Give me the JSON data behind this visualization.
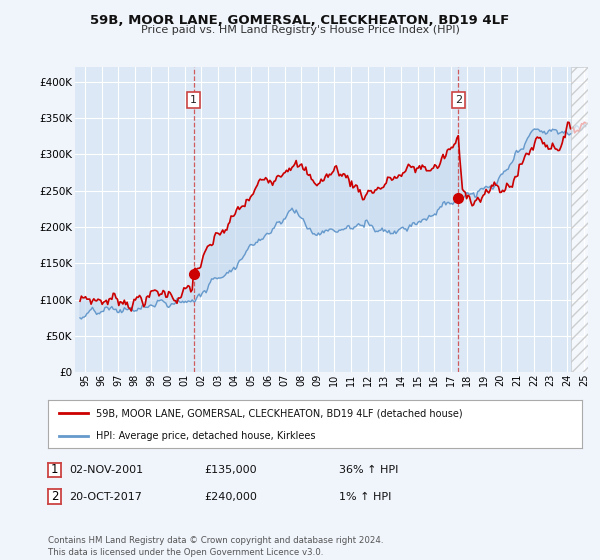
{
  "title": "59B, MOOR LANE, GOMERSAL, CLECKHEATON, BD19 4LF",
  "subtitle": "Price paid vs. HM Land Registry's House Price Index (HPI)",
  "legend_line1": "59B, MOOR LANE, GOMERSAL, CLECKHEATON, BD19 4LF (detached house)",
  "legend_line2": "HPI: Average price, detached house, Kirklees",
  "transaction1_date": "02-NOV-2001",
  "transaction1_price": "£135,000",
  "transaction1_hpi": "36% ↑ HPI",
  "transaction2_date": "20-OCT-2017",
  "transaction2_price": "£240,000",
  "transaction2_hpi": "1% ↑ HPI",
  "footnote": "Contains HM Land Registry data © Crown copyright and database right 2024.\nThis data is licensed under the Open Government Licence v3.0.",
  "background_color": "#f0f4fb",
  "plot_bg_color": "#dce8f5",
  "red_line_color": "#cc0000",
  "blue_line_color": "#6699cc",
  "fill_color": "#c5d9ef",
  "grid_color": "#ffffff",
  "vline_color": "#cc4444"
}
